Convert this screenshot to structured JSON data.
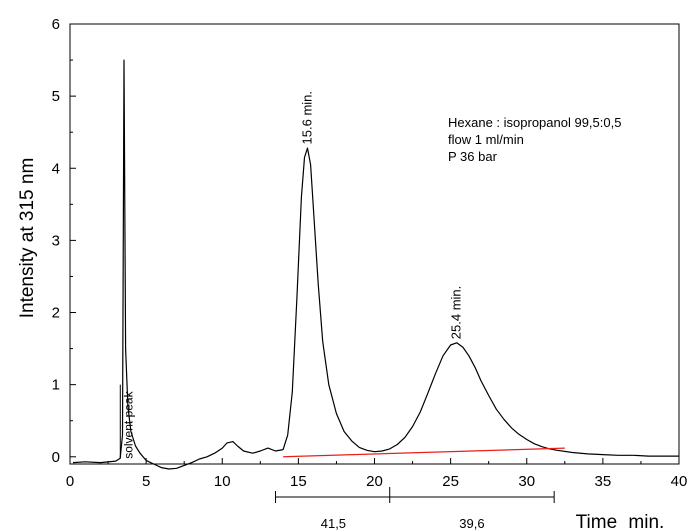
{
  "chart_data": {
    "type": "line",
    "title": "",
    "xlabel": "Time min.",
    "ylabel": "Intensity at 315 nm",
    "xlim": [
      0,
      40
    ],
    "ylim": [
      -0.1,
      6
    ],
    "x_ticks": [
      "0",
      "5",
      "10",
      "15",
      "20",
      "25",
      "30",
      "35",
      "40"
    ],
    "y_ticks": [
      "0",
      "1",
      "2",
      "3",
      "4",
      "5",
      "6"
    ],
    "grid": false,
    "legend": "none",
    "colors": {
      "trace": "#000000",
      "baseline": "#e8201a",
      "axes": "#000000"
    },
    "series": [
      {
        "x": [
          0.2,
          1,
          2,
          3,
          3.3,
          3.45,
          3.55,
          3.65,
          3.8,
          4.0,
          4.3,
          4.6,
          5.0,
          5.5,
          6.0,
          6.5,
          7.0,
          7.5,
          8.0,
          8.5,
          9.0,
          9.5,
          10.0,
          10.3,
          10.7,
          11.0,
          11.4,
          12.0,
          12.5,
          13.0,
          13.5,
          14.0,
          14.3,
          14.6,
          14.9,
          15.2,
          15.4,
          15.6,
          15.8,
          16.0,
          16.3,
          16.6,
          17.0,
          17.5,
          18.0,
          18.5,
          19.0,
          19.5,
          20.0,
          20.5,
          21.0,
          21.5,
          22.0,
          22.5,
          23.0,
          23.5,
          24.0,
          24.5,
          25.0,
          25.4,
          25.8,
          26.2,
          26.6,
          27.0,
          27.5,
          28.0,
          28.5,
          29.0,
          29.5,
          30.0,
          30.5,
          31.0,
          31.5,
          32.0,
          33.0,
          34.0,
          35.0,
          36.0,
          37.0,
          38.0,
          39.0,
          40.0
        ],
        "y": [
          -0.08,
          -0.07,
          -0.08,
          -0.06,
          -0.02,
          0.3,
          5.5,
          1.5,
          0.7,
          0.35,
          0.15,
          0.05,
          -0.05,
          -0.1,
          -0.15,
          -0.17,
          -0.16,
          -0.12,
          -0.08,
          -0.03,
          0.0,
          0.05,
          0.12,
          0.19,
          0.21,
          0.15,
          0.08,
          0.05,
          0.08,
          0.12,
          0.08,
          0.1,
          0.3,
          0.9,
          2.2,
          3.6,
          4.15,
          4.28,
          4.05,
          3.4,
          2.4,
          1.6,
          1.0,
          0.6,
          0.35,
          0.22,
          0.13,
          0.09,
          0.07,
          0.08,
          0.11,
          0.17,
          0.27,
          0.42,
          0.62,
          0.88,
          1.15,
          1.4,
          1.55,
          1.58,
          1.52,
          1.4,
          1.24,
          1.05,
          0.85,
          0.66,
          0.52,
          0.4,
          0.31,
          0.24,
          0.18,
          0.14,
          0.11,
          0.09,
          0.06,
          0.04,
          0.03,
          0.02,
          0.02,
          0.01,
          0.01,
          0.01
        ]
      },
      {
        "x": [
          14.0,
          32.5
        ],
        "y": [
          0.0,
          0.12
        ]
      }
    ],
    "annotations": [
      {
        "text": "15.6 min.",
        "x": 15.6,
        "y": 4.33
      },
      {
        "text": "25.4 min.",
        "x": 25.4,
        "y": 1.63
      },
      {
        "text": "solvent peak",
        "x": 3.5,
        "y": 0.0
      }
    ],
    "notes": [
      "Hexane : isopropanol 99,5:0,5",
      "flow 1 ml/min",
      "P 36 bar"
    ],
    "fraction_bar": {
      "x": [
        13.5,
        21.0,
        31.8
      ],
      "labels": [
        {
          "text": "41,5",
          "x": 17.3
        },
        {
          "text": "39,6",
          "x": 26.4
        }
      ]
    }
  }
}
